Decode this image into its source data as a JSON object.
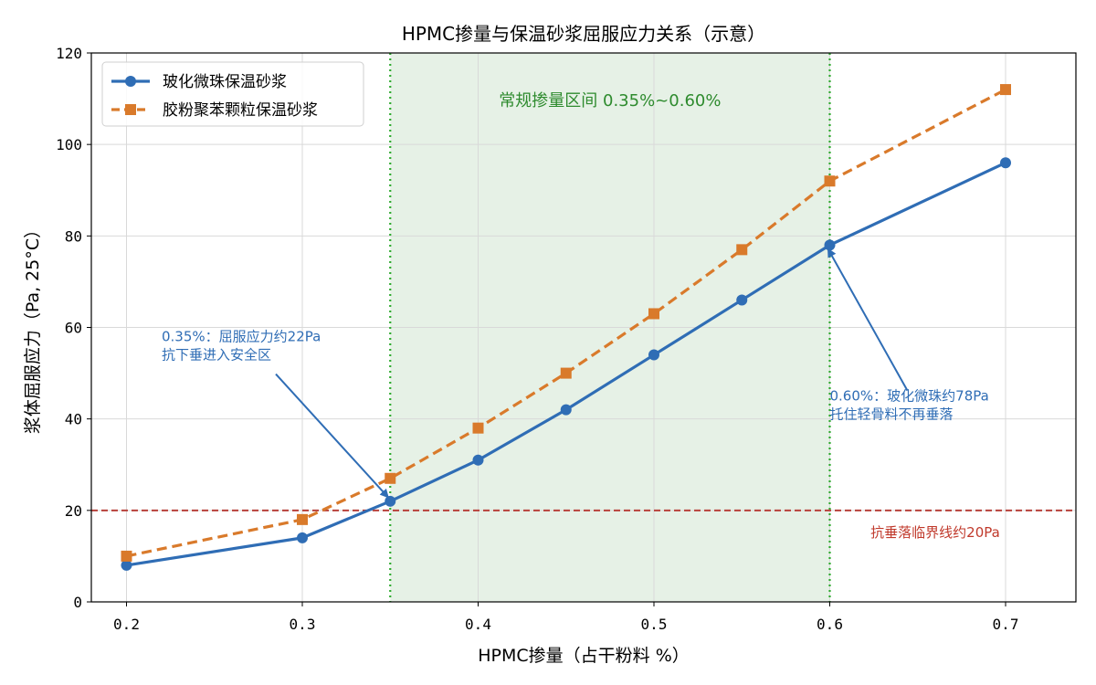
{
  "chart_data": {
    "type": "line",
    "title": "HPMC掺量与保温砂浆屈服应力关系（示意）",
    "xlabel": "HPMC掺量（占干粉料 %）",
    "ylabel": "浆体屈服应力（Pa, 25°C）",
    "xlim": [
      0.18,
      0.74
    ],
    "ylim": [
      0,
      120
    ],
    "xticks": [
      0.2,
      0.3,
      0.4,
      0.5,
      0.6,
      0.7
    ],
    "xtick_labels": [
      "0.2",
      "0.3",
      "0.4",
      "0.5",
      "0.6",
      "0.7"
    ],
    "yticks": [
      0,
      20,
      40,
      60,
      80,
      100,
      120
    ],
    "ytick_labels": [
      "0",
      "20",
      "40",
      "60",
      "80",
      "100",
      "120"
    ],
    "grid": true,
    "legend_position": "top-left",
    "series": [
      {
        "name": "玻化微珠保温砂浆",
        "color": "#2f6db5",
        "marker": "circle",
        "line_style": "solid",
        "x": [
          0.2,
          0.3,
          0.35,
          0.4,
          0.45,
          0.5,
          0.55,
          0.6,
          0.7
        ],
        "y": [
          8,
          14,
          22,
          31,
          42,
          54,
          66,
          78,
          96
        ]
      },
      {
        "name": "胶粉聚苯颗粒保温砂浆",
        "color": "#d97a2b",
        "marker": "square",
        "line_style": "dashed",
        "x": [
          0.2,
          0.3,
          0.35,
          0.4,
          0.45,
          0.5,
          0.55,
          0.6,
          0.7
        ],
        "y": [
          10,
          18,
          27,
          38,
          50,
          63,
          77,
          92,
          112
        ]
      }
    ],
    "shaded_region": {
      "x_range": [
        0.35,
        0.6
      ],
      "label": "常规掺量区间 0.35%~0.60%",
      "color": "#2e8b2e"
    },
    "reference_line": {
      "y": 20,
      "label": "抗垂落临界线约20Pa",
      "color": "#c0392b"
    },
    "annotations": [
      {
        "lines": [
          "0.35%：屈服应力约22Pa",
          "抗下垂进入安全区"
        ],
        "color": "#2f6db5",
        "point": [
          0.35,
          22
        ],
        "text_at": [
          0.22,
          57
        ]
      },
      {
        "lines": [
          "0.60%：玻化微珠约78Pa",
          "托住轻骨料不再垂落"
        ],
        "color": "#2f6db5",
        "point": [
          0.6,
          78
        ],
        "text_at": [
          0.6,
          44
        ]
      }
    ]
  }
}
